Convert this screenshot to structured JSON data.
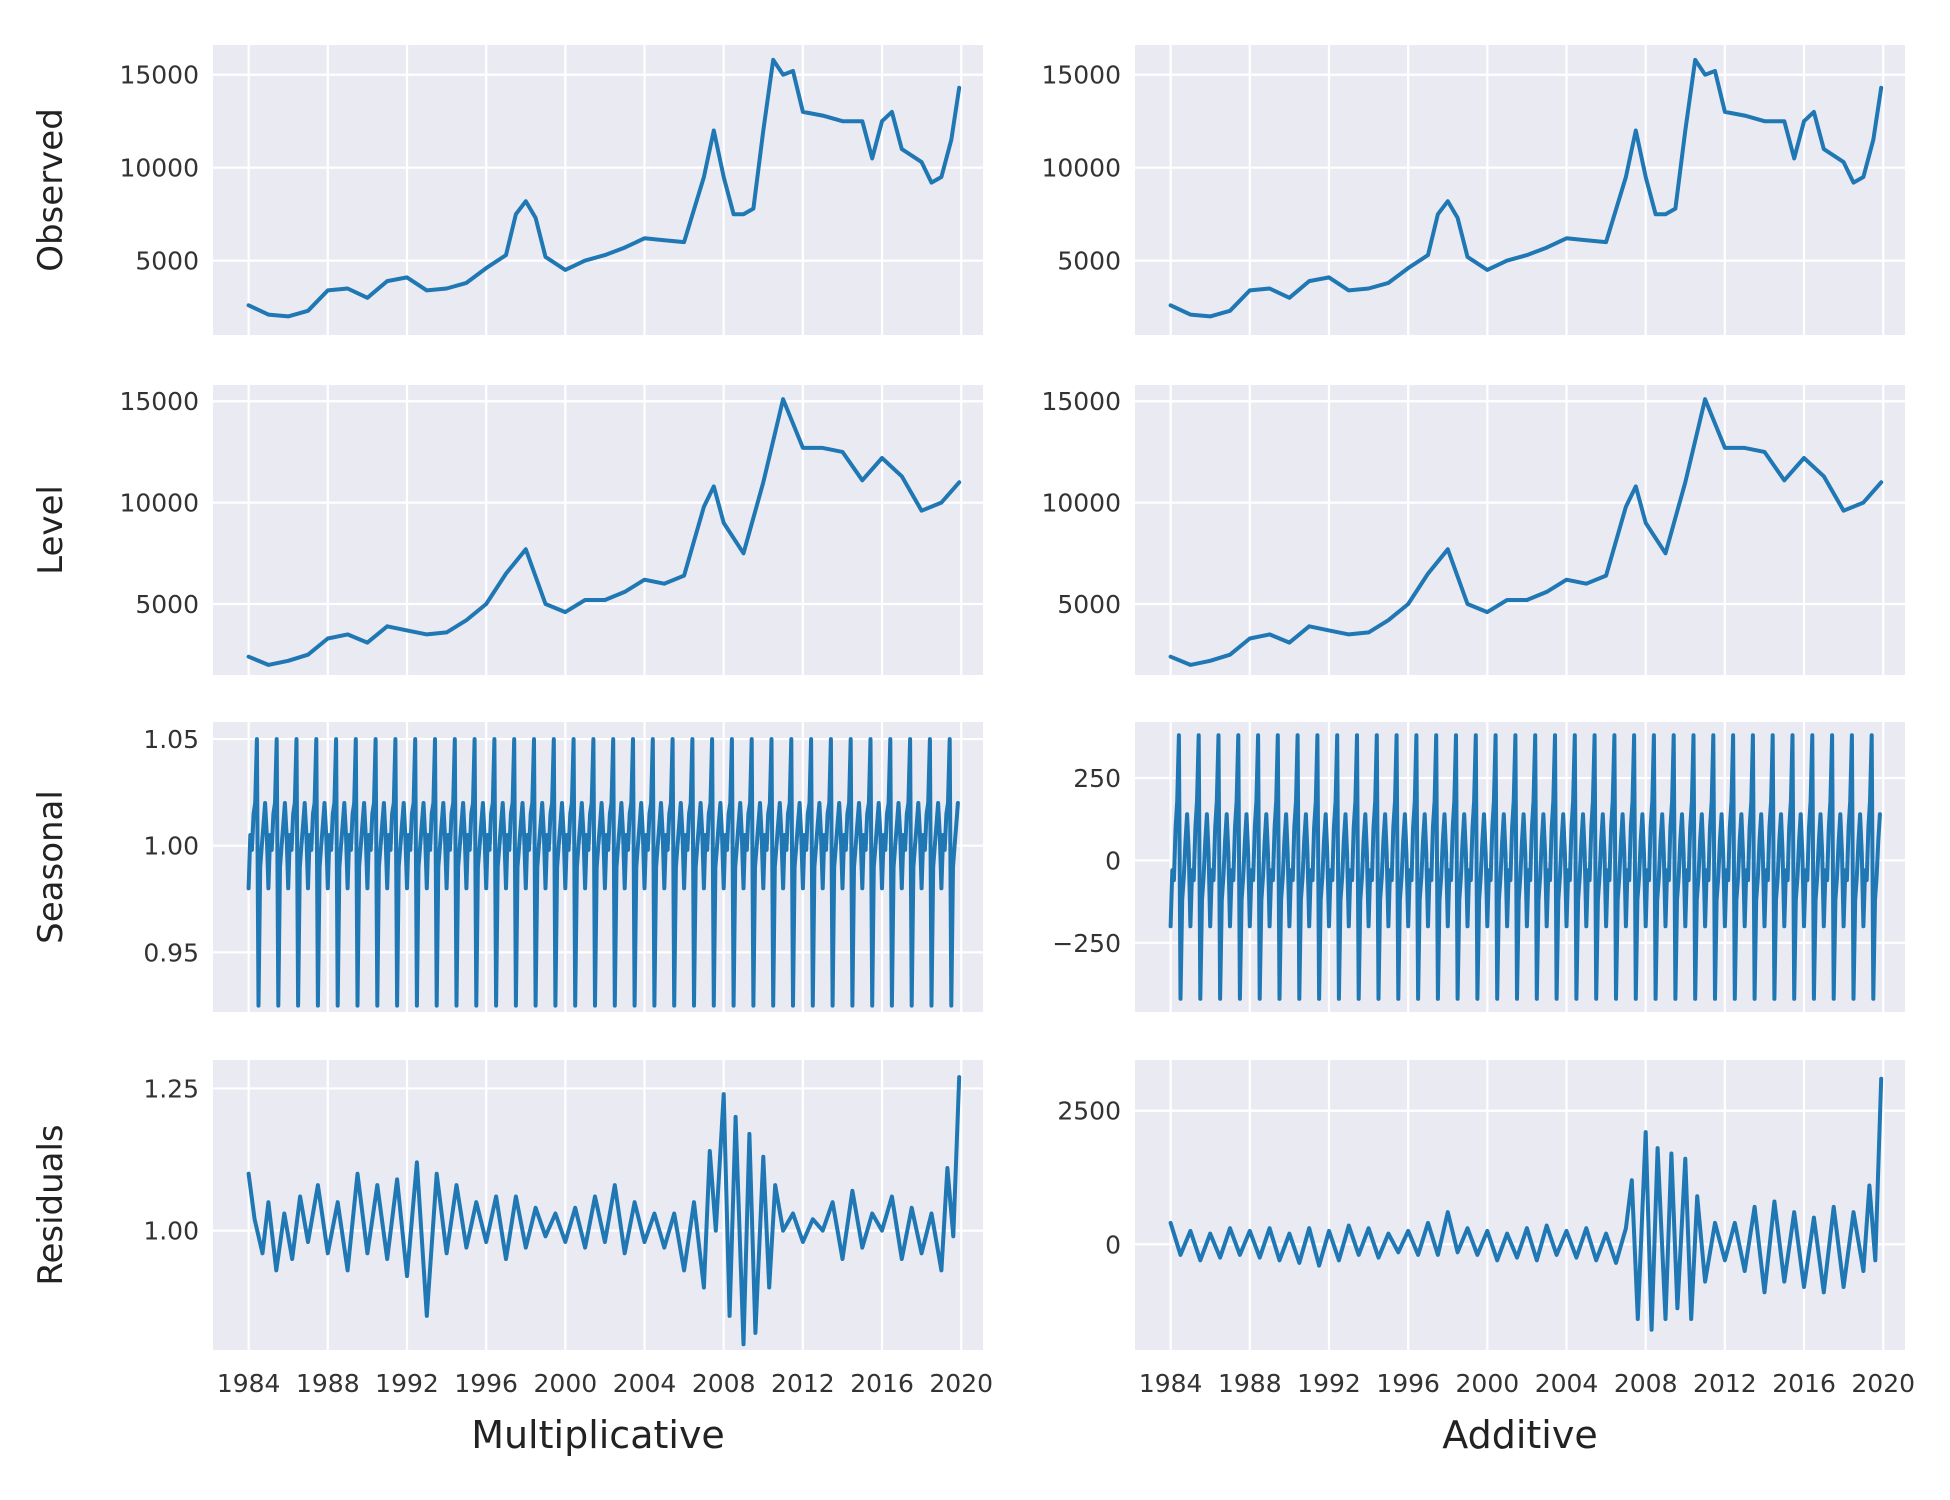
{
  "figure": {
    "background": "#ffffff",
    "panel_background": "#eaeaf2",
    "grid_color": "#ffffff",
    "line_color": "#1f77b4"
  },
  "chart_data": [
    {
      "type": "line",
      "column": "Multiplicative",
      "row": "Observed",
      "ylabel": "Observed",
      "xlabel": "",
      "xlim": [
        1982.2,
        2021.1
      ],
      "ylim": [
        1000,
        16600
      ],
      "xticks": [
        1984,
        1988,
        1992,
        1996,
        2000,
        2004,
        2008,
        2012,
        2016,
        2020
      ],
      "yticks": [
        5000,
        10000,
        15000
      ],
      "ytick_labels": [
        "5000",
        "10000",
        "15000"
      ],
      "grid": true,
      "show_xtick_labels": false,
      "seasonal": null,
      "series": [
        {
          "x": [
            1984.0,
            1985.0,
            1986.0,
            1987.0,
            1988.0,
            1989.0,
            1990.0,
            1991.0,
            1992.0,
            1993.0,
            1994.0,
            1995.0,
            1996.0,
            1997.0,
            1997.5,
            1998.0,
            1998.5,
            1999.0,
            2000.0,
            2001.0,
            2002.0,
            2003.0,
            2004.0,
            2005.0,
            2006.0,
            2007.0,
            2007.5,
            2008.0,
            2008.5,
            2009.0,
            2009.5,
            2010.0,
            2010.5,
            2011.0,
            2011.5,
            2012.0,
            2013.0,
            2014.0,
            2015.0,
            2015.5,
            2016.0,
            2016.5,
            2017.0,
            2018.0,
            2018.5,
            2019.0,
            2019.5,
            2019.9
          ],
          "y": [
            2600,
            2100,
            2000,
            2300,
            3400,
            3500,
            3000,
            3900,
            4100,
            3400,
            3500,
            3800,
            4600,
            5300,
            7500,
            8200,
            7300,
            5200,
            4500,
            5000,
            5300,
            5700,
            6200,
            6100,
            6000,
            9500,
            12000,
            9500,
            7500,
            7500,
            7800,
            12000,
            15800,
            15000,
            15200,
            13000,
            12800,
            12500,
            12500,
            10500,
            12500,
            13000,
            11000,
            10300,
            9200,
            9500,
            11500,
            14300
          ]
        }
      ]
    },
    {
      "type": "line",
      "column": "Additive",
      "row": "Observed",
      "ylabel": "",
      "xlabel": "",
      "xlim": [
        1982.2,
        2021.1
      ],
      "ylim": [
        1000,
        16600
      ],
      "xticks": [
        1984,
        1988,
        1992,
        1996,
        2000,
        2004,
        2008,
        2012,
        2016,
        2020
      ],
      "yticks": [
        5000,
        10000,
        15000
      ],
      "ytick_labels": [
        "5000",
        "10000",
        "15000"
      ],
      "grid": true,
      "show_xtick_labels": false,
      "seasonal": null,
      "series": [
        {
          "x": [
            1984.0,
            1985.0,
            1986.0,
            1987.0,
            1988.0,
            1989.0,
            1990.0,
            1991.0,
            1992.0,
            1993.0,
            1994.0,
            1995.0,
            1996.0,
            1997.0,
            1997.5,
            1998.0,
            1998.5,
            1999.0,
            2000.0,
            2001.0,
            2002.0,
            2003.0,
            2004.0,
            2005.0,
            2006.0,
            2007.0,
            2007.5,
            2008.0,
            2008.5,
            2009.0,
            2009.5,
            2010.0,
            2010.5,
            2011.0,
            2011.5,
            2012.0,
            2013.0,
            2014.0,
            2015.0,
            2015.5,
            2016.0,
            2016.5,
            2017.0,
            2018.0,
            2018.5,
            2019.0,
            2019.5,
            2019.9
          ],
          "y": [
            2600,
            2100,
            2000,
            2300,
            3400,
            3500,
            3000,
            3900,
            4100,
            3400,
            3500,
            3800,
            4600,
            5300,
            7500,
            8200,
            7300,
            5200,
            4500,
            5000,
            5300,
            5700,
            6200,
            6100,
            6000,
            9500,
            12000,
            9500,
            7500,
            7500,
            7800,
            12000,
            15800,
            15000,
            15200,
            13000,
            12800,
            12500,
            12500,
            10500,
            12500,
            13000,
            11000,
            10300,
            9200,
            9500,
            11500,
            14300
          ]
        }
      ]
    },
    {
      "type": "line",
      "column": "Multiplicative",
      "row": "Level",
      "ylabel": "Level",
      "xlabel": "",
      "xlim": [
        1982.2,
        2021.1
      ],
      "ylim": [
        1500,
        15800
      ],
      "xticks": [
        1984,
        1988,
        1992,
        1996,
        2000,
        2004,
        2008,
        2012,
        2016,
        2020
      ],
      "yticks": [
        5000,
        10000,
        15000
      ],
      "ytick_labels": [
        "5000",
        "10000",
        "15000"
      ],
      "grid": true,
      "show_xtick_labels": false,
      "seasonal": null,
      "series": [
        {
          "x": [
            1984.0,
            1985.0,
            1986.0,
            1987.0,
            1988.0,
            1989.0,
            1990.0,
            1991.0,
            1992.0,
            1993.0,
            1994.0,
            1995.0,
            1996.0,
            1997.0,
            1998.0,
            1999.0,
            2000.0,
            2001.0,
            2002.0,
            2003.0,
            2004.0,
            2005.0,
            2006.0,
            2007.0,
            2007.5,
            2008.0,
            2009.0,
            2010.0,
            2011.0,
            2012.0,
            2013.0,
            2014.0,
            2015.0,
            2016.0,
            2017.0,
            2018.0,
            2019.0,
            2019.9
          ],
          "y": [
            2400,
            2000,
            2200,
            2500,
            3300,
            3500,
            3100,
            3900,
            3700,
            3500,
            3600,
            4200,
            5000,
            6500,
            7700,
            5000,
            4600,
            5200,
            5200,
            5600,
            6200,
            6000,
            6400,
            9800,
            10800,
            9000,
            7500,
            11000,
            15100,
            12700,
            12700,
            12500,
            11100,
            12200,
            11300,
            9600,
            10000,
            11000
          ]
        }
      ]
    },
    {
      "type": "line",
      "column": "Additive",
      "row": "Level",
      "ylabel": "",
      "xlabel": "",
      "xlim": [
        1982.2,
        2021.1
      ],
      "ylim": [
        1500,
        15800
      ],
      "xticks": [
        1984,
        1988,
        1992,
        1996,
        2000,
        2004,
        2008,
        2012,
        2016,
        2020
      ],
      "yticks": [
        5000,
        10000,
        15000
      ],
      "ytick_labels": [
        "5000",
        "10000",
        "15000"
      ],
      "grid": true,
      "show_xtick_labels": false,
      "seasonal": null,
      "series": [
        {
          "x": [
            1984.0,
            1985.0,
            1986.0,
            1987.0,
            1988.0,
            1989.0,
            1990.0,
            1991.0,
            1992.0,
            1993.0,
            1994.0,
            1995.0,
            1996.0,
            1997.0,
            1998.0,
            1999.0,
            2000.0,
            2001.0,
            2002.0,
            2003.0,
            2004.0,
            2005.0,
            2006.0,
            2007.0,
            2007.5,
            2008.0,
            2009.0,
            2010.0,
            2011.0,
            2012.0,
            2013.0,
            2014.0,
            2015.0,
            2016.0,
            2017.0,
            2018.0,
            2019.0,
            2019.9
          ],
          "y": [
            2400,
            2000,
            2200,
            2500,
            3300,
            3500,
            3100,
            3900,
            3700,
            3500,
            3600,
            4200,
            5000,
            6500,
            7700,
            5000,
            4600,
            5200,
            5200,
            5600,
            6200,
            6000,
            6400,
            9800,
            10800,
            9000,
            7500,
            11000,
            15100,
            12700,
            12700,
            12500,
            11100,
            12200,
            11300,
            9600,
            10000,
            11000
          ]
        }
      ]
    },
    {
      "type": "line",
      "column": "Multiplicative",
      "row": "Seasonal",
      "ylabel": "Seasonal",
      "xlabel": "",
      "xlim": [
        1982.2,
        2021.1
      ],
      "ylim": [
        0.922,
        1.058
      ],
      "xticks": [
        1984,
        1988,
        1992,
        1996,
        2000,
        2004,
        2008,
        2012,
        2016,
        2020
      ],
      "yticks": [
        0.95,
        1.0,
        1.05
      ],
      "ytick_labels": [
        "0.95",
        "1.00",
        "1.05"
      ],
      "grid": true,
      "show_xtick_labels": false,
      "seasonal": {
        "start": 1984,
        "end": 2019.9,
        "period": 1,
        "pattern": [
          0.98,
          1.005,
          0.998,
          1.015,
          1.02,
          1.05,
          0.925,
          0.99,
          1.0,
          1.01,
          1.02,
          1.005
        ]
      },
      "series": []
    },
    {
      "type": "line",
      "column": "Additive",
      "row": "Seasonal",
      "ylabel": "",
      "xlabel": "",
      "xlim": [
        1982.2,
        2021.1
      ],
      "ylim": [
        -460,
        420
      ],
      "xticks": [
        1984,
        1988,
        1992,
        1996,
        2000,
        2004,
        2008,
        2012,
        2016,
        2020
      ],
      "yticks": [
        -250,
        0,
        250
      ],
      "ytick_labels": [
        "−250",
        "0",
        "250"
      ],
      "grid": true,
      "show_xtick_labels": false,
      "seasonal": {
        "start": 1984,
        "end": 2019.9,
        "period": 1,
        "pattern": [
          -200,
          -30,
          -60,
          100,
          180,
          380,
          -420,
          -120,
          -50,
          60,
          140,
          20
        ]
      },
      "series": []
    },
    {
      "type": "line",
      "column": "Multiplicative",
      "row": "Residuals",
      "ylabel": "Residuals",
      "xlabel": "Multiplicative",
      "xlim": [
        1982.2,
        2021.1
      ],
      "ylim": [
        0.79,
        1.3
      ],
      "xticks": [
        1984,
        1988,
        1992,
        1996,
        2000,
        2004,
        2008,
        2012,
        2016,
        2020
      ],
      "yticks": [
        1.0,
        1.25
      ],
      "ytick_labels": [
        "1.00",
        "1.25"
      ],
      "grid": true,
      "show_xtick_labels": true,
      "seasonal": null,
      "series": [
        {
          "x": [
            1984.0,
            1984.3,
            1984.7,
            1985.0,
            1985.4,
            1985.8,
            1986.2,
            1986.6,
            1987.0,
            1987.5,
            1988.0,
            1988.5,
            1989.0,
            1989.5,
            1990.0,
            1990.5,
            1991.0,
            1991.5,
            1992.0,
            1992.5,
            1993.0,
            1993.5,
            1994.0,
            1994.5,
            1995.0,
            1995.5,
            1996.0,
            1996.5,
            1997.0,
            1997.5,
            1998.0,
            1998.5,
            1999.0,
            1999.5,
            2000.0,
            2000.5,
            2001.0,
            2001.5,
            2002.0,
            2002.5,
            2003.0,
            2003.5,
            2004.0,
            2004.5,
            2005.0,
            2005.5,
            2006.0,
            2006.5,
            2007.0,
            2007.3,
            2007.6,
            2008.0,
            2008.3,
            2008.6,
            2009.0,
            2009.3,
            2009.6,
            2010.0,
            2010.3,
            2010.6,
            2011.0,
            2011.5,
            2012.0,
            2012.5,
            2013.0,
            2013.5,
            2014.0,
            2014.5,
            2015.0,
            2015.5,
            2016.0,
            2016.5,
            2017.0,
            2017.5,
            2018.0,
            2018.5,
            2019.0,
            2019.3,
            2019.6,
            2019.9
          ],
          "y": [
            1.1,
            1.02,
            0.96,
            1.05,
            0.93,
            1.03,
            0.95,
            1.06,
            0.98,
            1.08,
            0.96,
            1.05,
            0.93,
            1.1,
            0.96,
            1.08,
            0.95,
            1.09,
            0.92,
            1.12,
            0.85,
            1.1,
            0.96,
            1.08,
            0.97,
            1.05,
            0.98,
            1.06,
            0.95,
            1.06,
            0.97,
            1.04,
            0.99,
            1.03,
            0.98,
            1.04,
            0.97,
            1.06,
            0.98,
            1.08,
            0.96,
            1.05,
            0.98,
            1.03,
            0.97,
            1.03,
            0.93,
            1.05,
            0.9,
            1.14,
            1.0,
            1.24,
            0.85,
            1.2,
            0.8,
            1.17,
            0.82,
            1.13,
            0.9,
            1.08,
            1.0,
            1.03,
            0.98,
            1.02,
            1.0,
            1.05,
            0.95,
            1.07,
            0.97,
            1.03,
            1.0,
            1.06,
            0.95,
            1.04,
            0.96,
            1.03,
            0.93,
            1.11,
            0.99,
            1.27
          ]
        }
      ]
    },
    {
      "type": "line",
      "column": "Additive",
      "row": "Residuals",
      "ylabel": "",
      "xlabel": "Additive",
      "xlim": [
        1982.2,
        2021.1
      ],
      "ylim": [
        -1980,
        3450
      ],
      "xticks": [
        1984,
        1988,
        1992,
        1996,
        2000,
        2004,
        2008,
        2012,
        2016,
        2020
      ],
      "yticks": [
        0,
        2500
      ],
      "ytick_labels": [
        "0",
        "2500"
      ],
      "grid": true,
      "show_xtick_labels": true,
      "seasonal": null,
      "series": [
        {
          "x": [
            1984.0,
            1984.5,
            1985.0,
            1985.5,
            1986.0,
            1986.5,
            1987.0,
            1987.5,
            1988.0,
            1988.5,
            1989.0,
            1989.5,
            1990.0,
            1990.5,
            1991.0,
            1991.5,
            1992.0,
            1992.5,
            1993.0,
            1993.5,
            1994.0,
            1994.5,
            1995.0,
            1995.5,
            1996.0,
            1996.5,
            1997.0,
            1997.5,
            1998.0,
            1998.5,
            1999.0,
            1999.5,
            2000.0,
            2000.5,
            2001.0,
            2001.5,
            2002.0,
            2002.5,
            2003.0,
            2003.5,
            2004.0,
            2004.5,
            2005.0,
            2005.5,
            2006.0,
            2006.5,
            2007.0,
            2007.3,
            2007.6,
            2008.0,
            2008.3,
            2008.6,
            2009.0,
            2009.3,
            2009.6,
            2010.0,
            2010.3,
            2010.6,
            2011.0,
            2011.5,
            2012.0,
            2012.5,
            2013.0,
            2013.5,
            2014.0,
            2014.5,
            2015.0,
            2015.5,
            2016.0,
            2016.5,
            2017.0,
            2017.5,
            2018.0,
            2018.5,
            2019.0,
            2019.3,
            2019.6,
            2019.9
          ],
          "y": [
            400,
            -200,
            250,
            -300,
            200,
            -250,
            300,
            -200,
            250,
            -250,
            300,
            -300,
            200,
            -350,
            300,
            -400,
            250,
            -300,
            350,
            -200,
            300,
            -250,
            200,
            -150,
            250,
            -200,
            400,
            -200,
            600,
            -150,
            300,
            -200,
            250,
            -300,
            200,
            -250,
            300,
            -300,
            350,
            -200,
            250,
            -250,
            300,
            -300,
            200,
            -350,
            300,
            1200,
            -1400,
            2100,
            -1600,
            1800,
            -1400,
            1700,
            -1200,
            1600,
            -1400,
            900,
            -700,
            400,
            -300,
            400,
            -500,
            700,
            -900,
            800,
            -700,
            600,
            -800,
            500,
            -900,
            700,
            -800,
            600,
            -500,
            1100,
            -300,
            3100
          ]
        }
      ]
    }
  ]
}
